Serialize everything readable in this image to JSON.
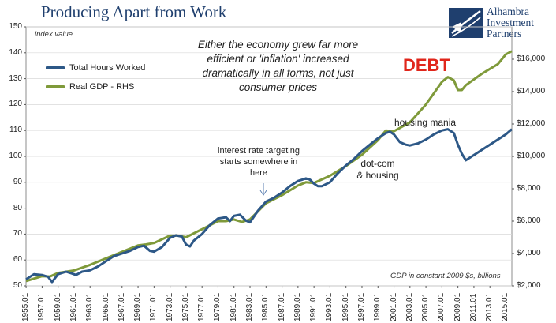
{
  "title": "Producing Apart from Work",
  "logo": {
    "name": "alhambra-logo-icon",
    "line1": "Alhambra",
    "line2": "Investment",
    "line3": "Partners"
  },
  "annotations": {
    "note": "Either the economy grew far more efficient or 'inflation' increased dramatically in all forms, not just consumer prices",
    "debt": "DEBT",
    "housing_mania": "housing mania",
    "dotcom": "dot-com & housing",
    "rate_targeting": "interest rate targeting starts somewhere in here",
    "left_axis_label": "index value",
    "right_axis_note": "GDP in constant 2009 $s, billions"
  },
  "colors": {
    "hours": "#2d5887",
    "gdp": "#7f9a3a",
    "debt": "#e0261b",
    "title": "#1f3f6e",
    "grid": "#d9d9d9"
  },
  "chart_data": {
    "type": "line",
    "title": "Producing Apart from Work",
    "ylabel": "index value",
    "y2label": "GDP in constant 2009 $s, billions",
    "ylim": [
      50,
      150
    ],
    "y2lim": [
      2000,
      18000
    ],
    "yticks": [
      50,
      60,
      70,
      80,
      90,
      100,
      110,
      120,
      130,
      140,
      150
    ],
    "y2ticks": [
      "$2,000",
      "$4,000",
      "$6,000",
      "$8,000",
      "$10,000",
      "$12,000",
      "$14,000",
      "$16,000"
    ],
    "y2tick_values": [
      2000,
      4000,
      6000,
      8000,
      10000,
      12000,
      14000,
      16000
    ],
    "xticks": [
      "1955.01",
      "1957.01",
      "1959.01",
      "1961.01",
      "1963.01",
      "1965.01",
      "1967.01",
      "1969.01",
      "1971.01",
      "1973.01",
      "1975.01",
      "1977.01",
      "1979.01",
      "1981.01",
      "1983.01",
      "1985.01",
      "1987.01",
      "1989.01",
      "1991.01",
      "1993.01",
      "1995.01",
      "1997.01",
      "1999.01",
      "2001.01",
      "2003.01",
      "2005.01",
      "2007.01",
      "2009.01",
      "2011.01",
      "2013.01",
      "2015.01"
    ],
    "xlim": [
      1955.0,
      2015.75
    ],
    "grid": true,
    "legend_position": "top-left",
    "series": [
      {
        "name": "Total Hours Worked",
        "axis": "left",
        "x": [
          1955.0,
          1956.0,
          1957.0,
          1957.75,
          1958.25,
          1959.0,
          1960.0,
          1960.75,
          1961.25,
          1962.0,
          1963.0,
          1964.0,
          1965.0,
          1966.0,
          1967.0,
          1968.0,
          1969.0,
          1969.75,
          1970.5,
          1971.0,
          1972.0,
          1973.0,
          1973.75,
          1974.5,
          1975.0,
          1975.5,
          1976.0,
          1977.0,
          1978.0,
          1979.0,
          1980.0,
          1980.5,
          1981.0,
          1981.75,
          1982.5,
          1983.0,
          1984.0,
          1985.0,
          1986.0,
          1987.0,
          1988.0,
          1989.0,
          1990.0,
          1990.5,
          1991.0,
          1991.5,
          1992.0,
          1993.0,
          1994.0,
          1995.0,
          1996.0,
          1997.0,
          1998.0,
          1999.0,
          2000.0,
          2000.5,
          2001.0,
          2001.75,
          2002.5,
          2003.0,
          2004.0,
          2005.0,
          2006.0,
          2007.0,
          2007.75,
          2008.5,
          2009.0,
          2009.5,
          2010.0,
          2011.0,
          2012.0,
          2013.0,
          2014.0,
          2015.0,
          2015.75
        ],
        "values": [
          52.5,
          54.5,
          54.2,
          53.5,
          51.5,
          54.5,
          55.5,
          54.8,
          54.2,
          55.5,
          56.0,
          57.5,
          59.5,
          61.5,
          62.5,
          63.5,
          65.0,
          65.5,
          63.5,
          63.2,
          65.0,
          68.5,
          69.5,
          69.0,
          66.0,
          65.2,
          67.5,
          70.0,
          73.5,
          76.0,
          76.5,
          75.0,
          77.0,
          77.5,
          75.2,
          74.5,
          79.0,
          82.5,
          84.0,
          86.0,
          88.5,
          90.5,
          91.5,
          91.0,
          89.5,
          88.5,
          88.5,
          90.0,
          93.5,
          96.5,
          99.0,
          102.0,
          104.5,
          107.0,
          109.0,
          109.5,
          108.5,
          105.5,
          104.5,
          104.2,
          105.0,
          106.5,
          108.5,
          110.0,
          110.5,
          109.0,
          104.5,
          101.0,
          98.5,
          100.5,
          102.5,
          104.5,
          106.5,
          108.5,
          110.5
        ]
      },
      {
        "name": "Real GDP - RHS",
        "axis": "right",
        "x": [
          1955.0,
          1957.0,
          1958.0,
          1959.0,
          1961.0,
          1963.0,
          1965.0,
          1967.0,
          1969.0,
          1970.0,
          1971.0,
          1973.0,
          1974.0,
          1975.0,
          1977.0,
          1979.0,
          1980.0,
          1981.0,
          1982.0,
          1983.0,
          1985.0,
          1987.0,
          1989.0,
          1990.0,
          1991.0,
          1993.0,
          1995.0,
          1997.0,
          1999.0,
          2000.0,
          2001.0,
          2003.0,
          2005.0,
          2007.0,
          2007.75,
          2008.5,
          2009.0,
          2009.5,
          2010.0,
          2012.0,
          2014.0,
          2015.0,
          2015.75
        ],
        "values": [
          2300,
          2600,
          2580,
          2800,
          2950,
          3300,
          3700,
          4100,
          4500,
          4560,
          4650,
          5100,
          5100,
          5000,
          5500,
          6000,
          6000,
          6100,
          5950,
          6100,
          7100,
          7600,
          8200,
          8400,
          8350,
          8800,
          9400,
          10100,
          11000,
          11600,
          11550,
          12100,
          13200,
          14600,
          14900,
          14700,
          14100,
          14100,
          14400,
          15100,
          15700,
          16300,
          16500
        ]
      }
    ]
  }
}
